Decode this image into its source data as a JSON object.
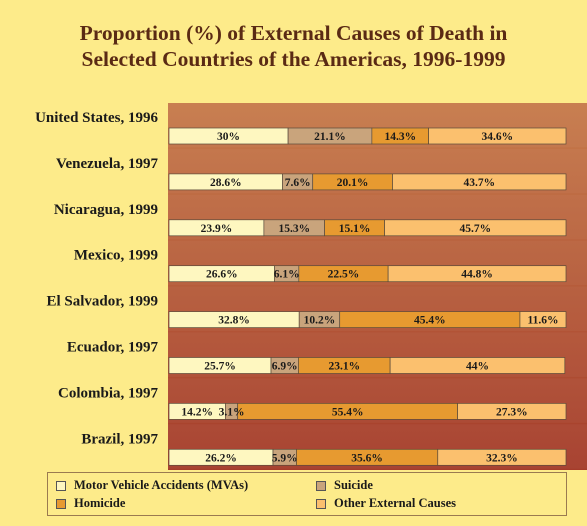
{
  "chart_data": {
    "type": "bar",
    "orientation": "horizontal",
    "stacked": true,
    "title": "Proportion (%) of External Causes of Death in Selected Countries of the Americas, 1996-1999",
    "xlabel": "",
    "ylabel": "",
    "xlim": [
      0,
      100
    ],
    "legend_position": "bottom",
    "grid": false,
    "categories": [
      "United States, 1996",
      "Venezuela, 1997",
      "Nicaragua, 1999",
      "Mexico, 1999",
      "El Salvador, 1999",
      "Ecuador, 1997",
      "Colombia, 1997",
      "Brazil, 1997"
    ],
    "series": [
      {
        "name": "Motor Vehicle Accidents (MVAs)",
        "color": "#fef7c0",
        "values": [
          30,
          28.6,
          23.9,
          26.6,
          32.8,
          25.7,
          14.2,
          26.2
        ],
        "labels": [
          "30%",
          "28.6%",
          "23.9%",
          "26.6%",
          "32.8%",
          "25.7%",
          "14.2%",
          "26.2%"
        ]
      },
      {
        "name": "Suicide",
        "color": "#c9a47c",
        "values": [
          21.1,
          7.6,
          15.3,
          6.1,
          10.2,
          6.9,
          3.1,
          5.9
        ],
        "labels": [
          "21.1%",
          "7.6%",
          "15.3%",
          "6.1%",
          "10.2%",
          "6.9%",
          "3.1%",
          "5.9%"
        ]
      },
      {
        "name": "Homicide",
        "color": "#e79a30",
        "values": [
          14.3,
          20.1,
          15.1,
          22.5,
          45.4,
          23.1,
          55.4,
          35.6
        ],
        "labels": [
          "14.3%",
          "20.1%",
          "15.1%",
          "22.5%",
          "45.4%",
          "23.1%",
          "55.4%",
          "35.6%"
        ]
      },
      {
        "name": "Other External Causes",
        "color": "#fbc06e",
        "values": [
          34.6,
          43.7,
          45.7,
          44.8,
          11.6,
          44,
          27.3,
          32.3
        ],
        "labels": [
          "34.6%",
          "43.7%",
          "45.7%",
          "44.8%",
          "11.6%",
          "44%",
          "27.3%",
          "32.3%"
        ]
      }
    ]
  },
  "legend": [
    {
      "label": "Motor Vehicle Accidents (MVAs)",
      "color": "#fef7c0"
    },
    {
      "label": "Suicide",
      "color": "#c9a47c"
    },
    {
      "label": "Homicide",
      "color": "#e79a30"
    },
    {
      "label": "Other External Causes",
      "color": "#fbc06e"
    }
  ]
}
